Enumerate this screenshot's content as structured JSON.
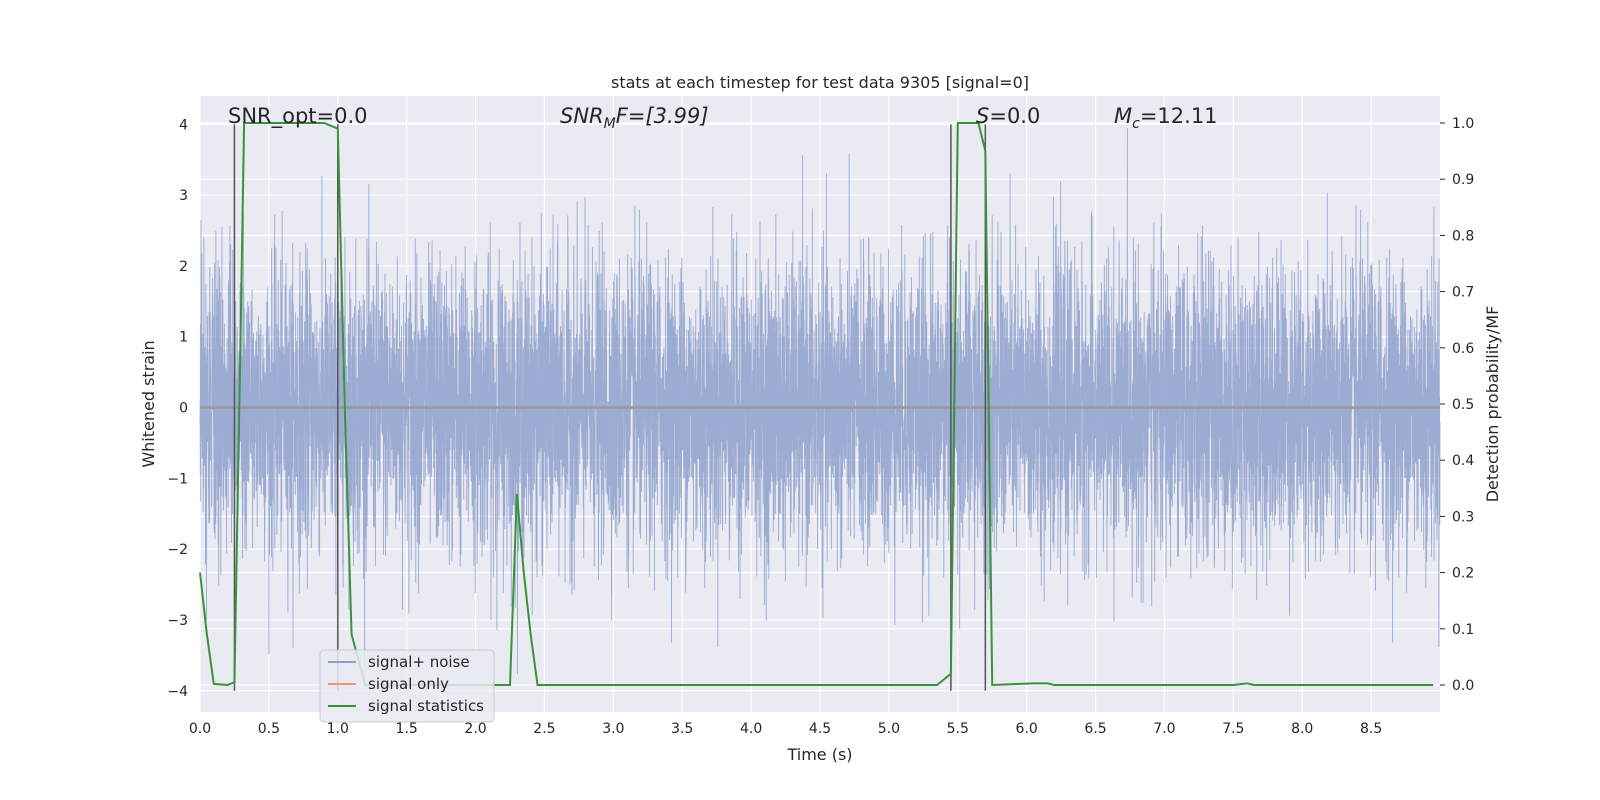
{
  "chart_data": {
    "type": "line",
    "title": "stats at each timestep for test data 9305 [signal=0]",
    "xlabel": "Time (s)",
    "ylabel_left": "Whitened strain",
    "ylabel_right": "Detection probability/MF",
    "xlim": [
      0.0,
      9.0
    ],
    "ylim_left": [
      -4.3,
      4.4
    ],
    "ylim_right": [
      -0.048,
      1.048
    ],
    "x_ticks": [
      0.0,
      0.5,
      1.0,
      1.5,
      2.0,
      2.5,
      3.0,
      3.5,
      4.0,
      4.5,
      5.0,
      5.5,
      6.0,
      6.5,
      7.0,
      7.5,
      8.0,
      8.5
    ],
    "x_tick_labels": [
      "0.0",
      "0.5",
      "1.0",
      "1.5",
      "2.0",
      "2.5",
      "3.0",
      "3.5",
      "4.0",
      "4.5",
      "5.0",
      "5.5",
      "6.0",
      "6.5",
      "7.0",
      "7.5",
      "8.0",
      "8.5"
    ],
    "y_left_ticks": [
      -4,
      -3,
      -2,
      -1,
      0,
      1,
      2,
      3,
      4
    ],
    "y_left_tick_labels": [
      "−4",
      "−3",
      "−2",
      "−1",
      "0",
      "1",
      "2",
      "3",
      "4"
    ],
    "y_right_ticks": [
      0.0,
      0.1,
      0.2,
      0.3,
      0.4,
      0.5,
      0.6,
      0.7,
      0.8,
      0.9,
      1.0
    ],
    "y_right_tick_labels": [
      "0.0",
      "0.1",
      "0.2",
      "0.3",
      "0.4",
      "0.5",
      "0.6",
      "0.7",
      "0.8",
      "0.9",
      "1.0"
    ],
    "grid": true,
    "legend": {
      "position": "lower-left",
      "entries": [
        {
          "label": "signal+ noise",
          "color": "#8da0cb"
        },
        {
          "label": "signal only",
          "color": "#e9967a"
        },
        {
          "label": "signal statistics",
          "color": "#3a923a"
        }
      ]
    },
    "annotations": {
      "snr_opt": "SNR_opt=0.0",
      "snr_mf_main": "SNR",
      "snr_mf_sub": "M",
      "snr_mf_rest": "F=[3.99]",
      "s_label": "S",
      "s_rest": "=0.0",
      "mc_main": "M",
      "mc_sub": "c",
      "mc_rest": "=12.11"
    },
    "series": [
      {
        "name": "signal+ noise",
        "axis": "left",
        "description_envelope": "dense whitened strain noise",
        "samples_count": 9000,
        "amplitude_sigma": 1.0,
        "color": "#8da0cb"
      },
      {
        "name": "signal only",
        "axis": "left",
        "values_constant": 0.0,
        "color": "#e9967a"
      },
      {
        "name": "signal statistics",
        "axis": "right",
        "color": "#3a923a",
        "x": [
          0.0,
          0.05,
          0.1,
          0.2,
          0.25,
          0.3,
          0.32,
          0.6,
          0.9,
          1.0,
          1.05,
          1.1,
          1.2,
          2.25,
          2.3,
          2.35,
          2.4,
          2.45,
          5.35,
          5.45,
          5.5,
          5.65,
          5.7,
          5.75,
          6.05,
          6.15,
          6.2,
          7.5,
          7.6,
          7.65,
          8.95
        ],
        "y": [
          0.2,
          0.09,
          0.002,
          0.0,
          0.005,
          0.7,
          1.0,
          1.0,
          1.0,
          0.99,
          0.5,
          0.09,
          0.0,
          0.0,
          0.34,
          0.2,
          0.09,
          0.0,
          0.0,
          0.02,
          1.0,
          1.0,
          0.95,
          0.0,
          0.003,
          0.003,
          0.0,
          0.0,
          0.003,
          0.0,
          0.0
        ]
      }
    ],
    "vertical_markers": [
      {
        "x": 0.25,
        "ymin": -4.0,
        "ymax": 4.0,
        "color": "#555555"
      },
      {
        "x": 1.0,
        "ymin": -4.0,
        "ymax": 4.0,
        "color": "#555555"
      },
      {
        "x": 5.45,
        "ymin": -4.0,
        "ymax": 4.0,
        "color": "#555555"
      },
      {
        "x": 5.7,
        "ymin": -4.0,
        "ymax": 4.0,
        "color": "#555555"
      }
    ],
    "colors": {
      "background": "#eaeaf2",
      "grid": "#ffffff",
      "text": "#262626"
    }
  }
}
